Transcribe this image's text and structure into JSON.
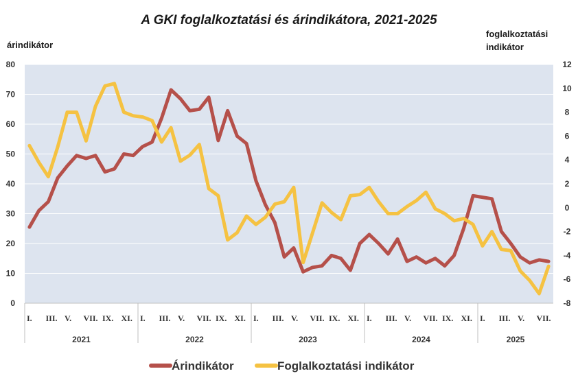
{
  "chart_data": {
    "type": "line",
    "title": "A GKI foglalkoztatási és árindikátora, 2021-2025",
    "y_left_label": "árindikátor",
    "y_right_label_lines": [
      "foglalkoztatási",
      "indikátor"
    ],
    "y_left_range": [
      0,
      80
    ],
    "y_left_ticks": [
      "0",
      "10",
      "20",
      "30",
      "40",
      "50",
      "60",
      "70",
      "80"
    ],
    "y_right_range": [
      -8,
      12
    ],
    "y_right_ticks": [
      "-8",
      "-6",
      "-4",
      "-2",
      "0",
      "2",
      "4",
      "6",
      "8",
      "10",
      "12"
    ],
    "month_labels": [
      "I.",
      "III.",
      "V.",
      "VII.",
      "IX.",
      "XI.",
      "I.",
      "III.",
      "V.",
      "VII.",
      "IX.",
      "XI.",
      "I.",
      "III.",
      "V.",
      "VII.",
      "IX.",
      "XI.",
      "I.",
      "III.",
      "V.",
      "VII.",
      "IX.",
      "XI.",
      "I.",
      "III.",
      "V.",
      "VII."
    ],
    "years": [
      "2021",
      "2022",
      "2023",
      "2024",
      "2025"
    ],
    "grid": true,
    "legend_position": "bottom",
    "series": [
      {
        "name": "Árindikátor",
        "axis": "left",
        "color": "#b5504a",
        "values": [
          25.5,
          31,
          34,
          42,
          46,
          49.5,
          48.5,
          49.5,
          44,
          45,
          50,
          49.5,
          52.5,
          54,
          62,
          71.5,
          68.5,
          64.5,
          65,
          69,
          54.5,
          64.5,
          56,
          53.5,
          41,
          33,
          27,
          15.5,
          18.5,
          10.5,
          12,
          12.5,
          16,
          15,
          11,
          20,
          23,
          20,
          16.5,
          21.5,
          14,
          15.5,
          13.5,
          15,
          12.5,
          16,
          25,
          36,
          35.5,
          35,
          24,
          20,
          15.5,
          13.5,
          14.5,
          14
        ]
      },
      {
        "name": "Foglalkoztatási indikátor",
        "axis": "right",
        "color": "#f5c242",
        "values": [
          5.2,
          3.8,
          2.6,
          5.1,
          8.0,
          8.0,
          5.6,
          8.5,
          10.2,
          10.4,
          8.0,
          7.7,
          7.6,
          7.3,
          5.5,
          6.7,
          3.9,
          4.4,
          5.3,
          1.6,
          1.0,
          -2.7,
          -2.1,
          -0.7,
          -1.4,
          -0.8,
          0.3,
          0.5,
          1.7,
          -4.6,
          -2.1,
          0.4,
          -0.4,
          -1.0,
          1.0,
          1.1,
          1.7,
          0.5,
          -0.5,
          -0.5,
          0.1,
          0.6,
          1.3,
          -0.1,
          -0.5,
          -1.1,
          -0.9,
          -1.4,
          -3.2,
          -2.0,
          -3.5,
          -3.6,
          -5.3,
          -6.1,
          -7.2,
          -4.9
        ]
      }
    ]
  }
}
